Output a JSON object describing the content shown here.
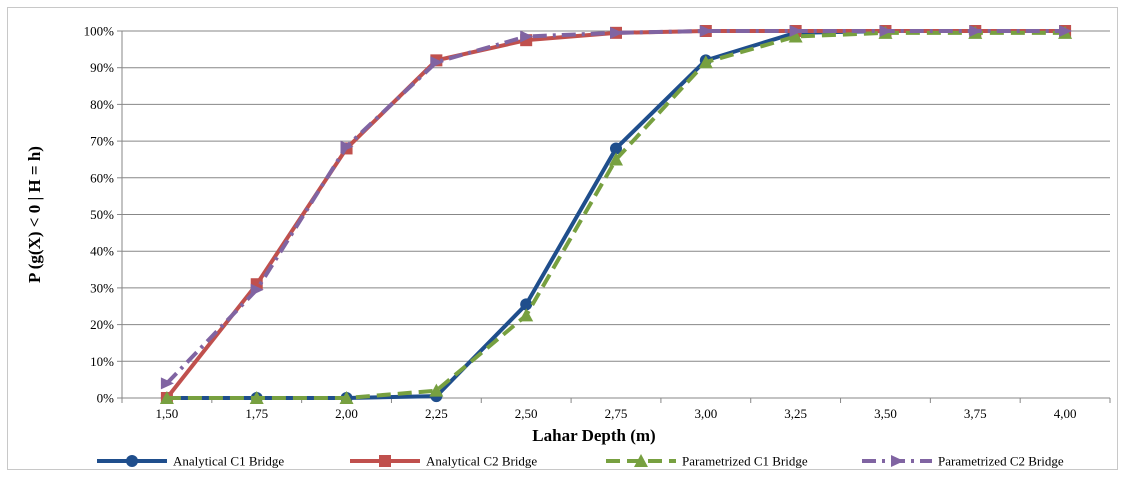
{
  "chart_data": {
    "type": "line",
    "x": [
      "1,50",
      "1,75",
      "2,00",
      "2,25",
      "2,50",
      "2,75",
      "3,00",
      "3,25",
      "3,50",
      "3,75",
      "4,00"
    ],
    "xlabel": "Lahar Depth (m)",
    "ylabel": "P (g(X) < 0 | H = h)",
    "ylim": [
      0,
      100
    ],
    "yticks": [
      "0%",
      "10%",
      "20%",
      "30%",
      "40%",
      "50%",
      "60%",
      "70%",
      "80%",
      "90%",
      "100%"
    ],
    "grid": "horizontal",
    "legend_position": "bottom",
    "series": [
      {
        "name": "Analytical C1 Bridge",
        "color": "#1f4e8c",
        "dash": "solid",
        "marker": "circle",
        "values": [
          0,
          0,
          0,
          0.5,
          25.5,
          68,
          92,
          99.5,
          100,
          100,
          100
        ]
      },
      {
        "name": "Analytical C2 Bridge",
        "color": "#c0504d",
        "dash": "solid",
        "marker": "square",
        "values": [
          0,
          31,
          68,
          92,
          97.5,
          99.5,
          100,
          100,
          100,
          100,
          100
        ]
      },
      {
        "name": "Parametrized C1 Bridge",
        "color": "#77a040",
        "dash": "dashed",
        "marker": "triangle",
        "values": [
          0,
          0,
          0,
          2,
          22.5,
          65,
          91.5,
          98.5,
          99.5,
          99.5,
          99.5
        ]
      },
      {
        "name": "Parametrized C2 Bridge",
        "color": "#8064a2",
        "dash": "dashdot",
        "marker": "arrow",
        "values": [
          4,
          29.5,
          68.5,
          91.5,
          98.5,
          99.5,
          100,
          100,
          100,
          100,
          100
        ]
      }
    ]
  }
}
